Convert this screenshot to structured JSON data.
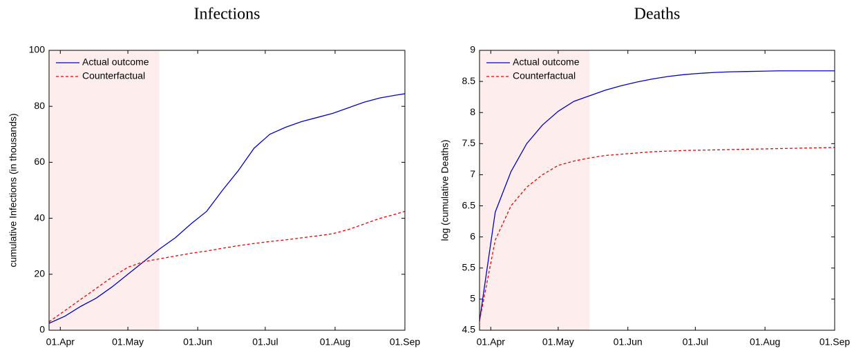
{
  "chart_data": [
    {
      "type": "line",
      "title": "Infections",
      "y_label": "cumulative Infections (in thousands)",
      "x": [
        "27.Mar",
        "03.Apr",
        "10.Apr",
        "17.Apr",
        "24.Apr",
        "01.May",
        "08.May",
        "15.May",
        "22.May",
        "29.May",
        "05.Jun",
        "12.Jun",
        "19.Jun",
        "26.Jun",
        "03.Jul",
        "10.Jul",
        "17.Jul",
        "24.Jul",
        "31.Jul",
        "07.Aug",
        "14.Aug",
        "21.Aug",
        "28.Aug",
        "01.Sep"
      ],
      "series": [
        {
          "name": "Actual outcome",
          "color": "#0000cc",
          "dash": "solid",
          "values": [
            2.5,
            5,
            8.5,
            11.5,
            15.5,
            20,
            24.5,
            29,
            33,
            38,
            42.5,
            50,
            57,
            65,
            70,
            72.5,
            74.5,
            76,
            77.5,
            79.5,
            81.5,
            83,
            84,
            84.5
          ]
        },
        {
          "name": "Counterfactual",
          "color": "#ee0000",
          "dash": "dashed",
          "values": [
            3,
            7,
            11,
            15,
            19,
            22.5,
            24.5,
            25.5,
            26.5,
            27.5,
            28.3,
            29.3,
            30.2,
            31,
            31.7,
            32.3,
            33,
            33.7,
            34.5,
            36,
            38,
            40,
            41.5,
            42.5
          ]
        }
      ],
      "xlim": [
        "27.Mar",
        "01.Sep"
      ],
      "xticks": [
        "01.Apr",
        "01.May",
        "01.Jun",
        "01.Jul",
        "01.Aug",
        "01.Sep"
      ],
      "ylim": [
        0,
        100
      ],
      "yticks": [
        0,
        20,
        40,
        60,
        80,
        100
      ],
      "shaded_span": [
        "27.Mar",
        "15.May"
      ],
      "shade_color": "#fdeded",
      "legend": "upper left",
      "grid": false
    },
    {
      "type": "line",
      "title": "Deaths",
      "y_label": "log (cumulative Deaths)",
      "x": [
        "27.Mar",
        "03.Apr",
        "10.Apr",
        "17.Apr",
        "24.Apr",
        "01.May",
        "08.May",
        "15.May",
        "22.May",
        "29.May",
        "05.Jun",
        "12.Jun",
        "19.Jun",
        "26.Jun",
        "03.Jul",
        "10.Jul",
        "17.Jul",
        "24.Jul",
        "31.Jul",
        "07.Aug",
        "14.Aug",
        "21.Aug",
        "28.Aug",
        "01.Sep"
      ],
      "series": [
        {
          "name": "Actual outcome",
          "color": "#0000cc",
          "dash": "solid",
          "values": [
            4.65,
            6.4,
            7.05,
            7.5,
            7.8,
            8.02,
            8.18,
            8.27,
            8.36,
            8.43,
            8.49,
            8.54,
            8.58,
            8.61,
            8.63,
            8.645,
            8.655,
            8.66,
            8.665,
            8.67,
            8.67,
            8.67,
            8.67,
            8.67
          ]
        },
        {
          "name": "Counterfactual",
          "color": "#ee0000",
          "dash": "dashed",
          "values": [
            4.65,
            5.95,
            6.5,
            6.8,
            7.0,
            7.15,
            7.22,
            7.27,
            7.31,
            7.33,
            7.35,
            7.37,
            7.38,
            7.39,
            7.395,
            7.4,
            7.405,
            7.41,
            7.415,
            7.42,
            7.425,
            7.43,
            7.435,
            7.44
          ]
        }
      ],
      "xlim": [
        "27.Mar",
        "01.Sep"
      ],
      "xticks": [
        "01.Apr",
        "01.May",
        "01.Jun",
        "01.Jul",
        "01.Aug",
        "01.Sep"
      ],
      "ylim": [
        4.5,
        9
      ],
      "yticks": [
        4.5,
        5,
        5.5,
        6,
        6.5,
        7,
        7.5,
        8,
        8.5,
        9
      ],
      "shaded_span": [
        "27.Mar",
        "15.May"
      ],
      "shade_color": "#fdeded",
      "legend": "upper left",
      "grid": false
    }
  ]
}
